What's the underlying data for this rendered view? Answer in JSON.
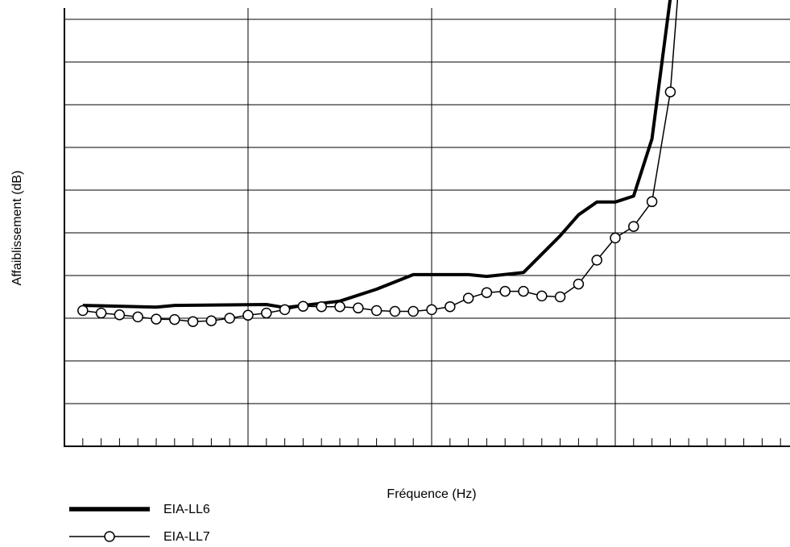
{
  "chart_data": {
    "type": "line",
    "title": "",
    "xlabel": "Fréquence (Hz)",
    "ylabel": "Affaiblissement (dB)",
    "x_ticks_labeled": false,
    "y_ticks_labeled": false,
    "xlim": [
      0,
      38
    ],
    "ylim": [
      0,
      10.5
    ],
    "grid": true,
    "x_major_divisions": 4,
    "y_major_divisions": 10,
    "x_minor_per_major": 10,
    "legend_position": "bottom-left",
    "series": [
      {
        "name": "EIA-LL6",
        "style": "thick-line",
        "color": "#000000",
        "points": [
          [
            1,
            3.3
          ],
          [
            5,
            3.26
          ],
          [
            6,
            3.3
          ],
          [
            11,
            3.32
          ],
          [
            12,
            3.25
          ],
          [
            15,
            3.4
          ],
          [
            17,
            3.68
          ],
          [
            19,
            4.02
          ],
          [
            22,
            4.02
          ],
          [
            23,
            3.98
          ],
          [
            25,
            4.07
          ],
          [
            27,
            4.93
          ],
          [
            28,
            5.42
          ],
          [
            29,
            5.72
          ],
          [
            30,
            5.72
          ],
          [
            31,
            5.86
          ],
          [
            32,
            7.2
          ],
          [
            33,
            10.5
          ]
        ]
      },
      {
        "name": "EIA-LL7",
        "style": "thin-line-circle-markers",
        "color": "#000000",
        "points": [
          [
            1,
            3.18
          ],
          [
            2,
            3.12
          ],
          [
            3,
            3.08
          ],
          [
            4,
            3.03
          ],
          [
            5,
            2.98
          ],
          [
            6,
            2.97
          ],
          [
            7,
            2.92
          ],
          [
            8,
            2.94
          ],
          [
            9,
            3.0
          ],
          [
            10,
            3.07
          ],
          [
            11,
            3.12
          ],
          [
            12,
            3.2
          ],
          [
            13,
            3.28
          ],
          [
            14,
            3.27
          ],
          [
            15,
            3.27
          ],
          [
            16,
            3.24
          ],
          [
            17,
            3.18
          ],
          [
            18,
            3.16
          ],
          [
            19,
            3.16
          ],
          [
            20,
            3.2
          ],
          [
            21,
            3.27
          ],
          [
            22,
            3.47
          ],
          [
            23,
            3.6
          ],
          [
            24,
            3.63
          ],
          [
            25,
            3.63
          ],
          [
            26,
            3.52
          ],
          [
            27,
            3.5
          ],
          [
            28,
            3.8
          ],
          [
            29,
            4.36
          ],
          [
            30,
            4.88
          ],
          [
            31,
            5.15
          ],
          [
            32,
            5.73
          ],
          [
            33,
            8.3
          ],
          [
            33.4,
            10.5
          ]
        ]
      }
    ]
  },
  "legend": {
    "items": [
      {
        "label": "EIA-LL6",
        "style": "thick-line"
      },
      {
        "label": "EIA-LL7",
        "style": "thin-line-circle-markers"
      }
    ]
  }
}
